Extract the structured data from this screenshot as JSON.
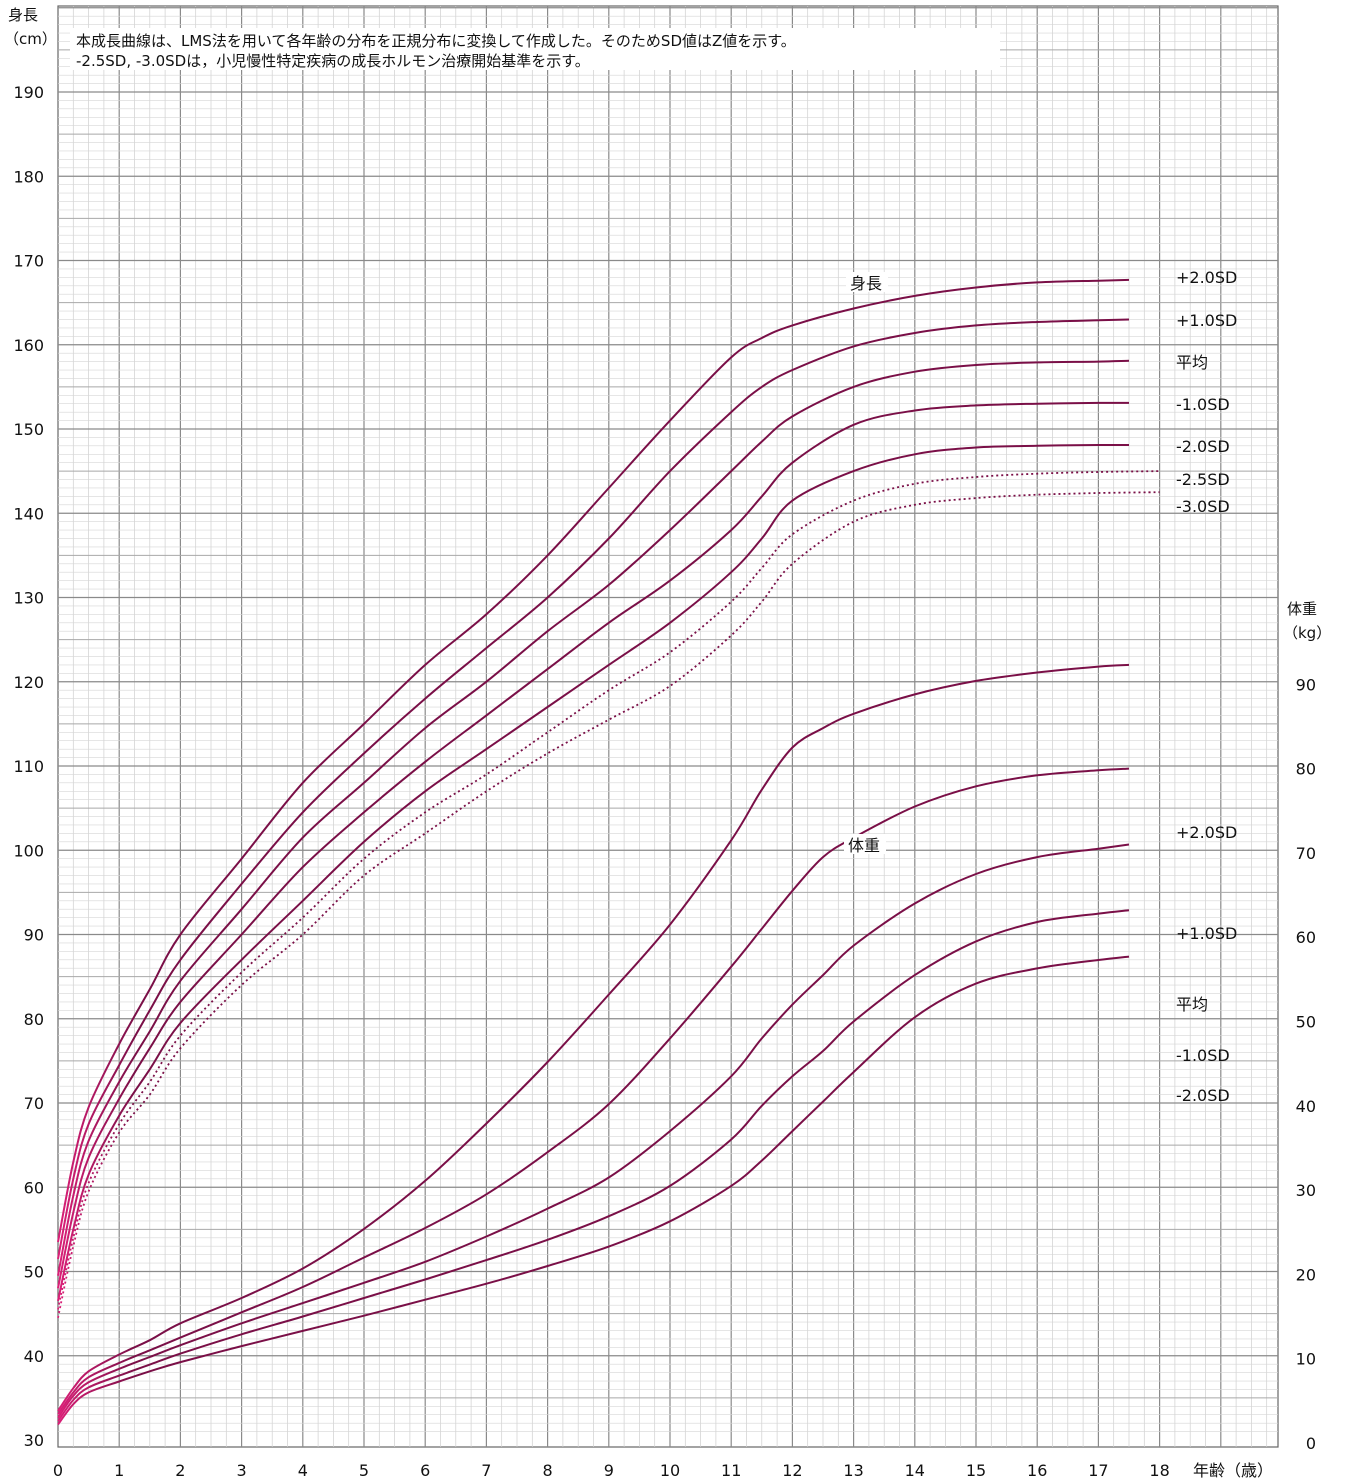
{
  "chart_data": {
    "type": "line",
    "notes": [
      "本成長曲線は、LMS法を用いて各年齢の分布を正規分布に変換して作成した。そのためSD値はZ値を示す。",
      "-2.5SD, -3.0SDは，小児慢性特定疾病の成長ホルモン治療開始基準を示す。"
    ],
    "x_axis": {
      "label": "年齢（歳）",
      "ticks": [
        "0",
        "1",
        "2",
        "3",
        "4",
        "5",
        "6",
        "7",
        "8",
        "9",
        "10",
        "11",
        "12",
        "13",
        "14",
        "15",
        "16",
        "17",
        "18"
      ],
      "range": [
        0,
        18.5
      ]
    },
    "y_axis_left": {
      "title_line1": "身長",
      "title_line2": "（cm）",
      "ticks": [
        30,
        40,
        50,
        60,
        70,
        80,
        90,
        100,
        110,
        120,
        130,
        140,
        150,
        160,
        170,
        180,
        190
      ],
      "range": [
        30,
        195
      ]
    },
    "y_axis_right": {
      "title_line1": "体重",
      "title_line2": "（kg）",
      "ticks": [
        0,
        10,
        20,
        30,
        40,
        50,
        60,
        70,
        80,
        90
      ],
      "range": [
        0,
        120
      ]
    },
    "grid": true,
    "line_color": "#7a0f47",
    "line_color_infant": "#e0207a",
    "height_group": {
      "title": "身長",
      "series": [
        {
          "name": "+2.0SD",
          "dashed": false,
          "x": [
            0,
            0.25,
            0.5,
            1,
            1.5,
            2,
            3,
            4,
            5,
            6,
            7,
            8,
            9,
            10,
            11,
            11.5,
            12,
            13,
            14,
            15,
            16,
            17,
            17.5
          ],
          "y": [
            53.5,
            63,
            69.5,
            77,
            83.5,
            90,
            99,
            108,
            115,
            122,
            128,
            135,
            143,
            151,
            158.5,
            160.8,
            162.3,
            164.3,
            165.8,
            166.8,
            167.4,
            167.6,
            167.7
          ]
        },
        {
          "name": "+1.0SD",
          "dashed": false,
          "x": [
            0,
            0.25,
            0.5,
            1,
            1.5,
            2,
            3,
            4,
            5,
            6,
            7,
            8,
            9,
            10,
            11,
            11.5,
            12,
            13,
            14,
            15,
            16,
            17,
            17.5
          ],
          "y": [
            51.5,
            61,
            67.5,
            74.5,
            81,
            87,
            96,
            104.5,
            111.5,
            118,
            124,
            130,
            137,
            145,
            152,
            155,
            157,
            159.8,
            161.4,
            162.3,
            162.7,
            162.9,
            163
          ]
        },
        {
          "name": "平均",
          "dashed": false,
          "x": [
            0,
            0.25,
            0.5,
            1,
            1.5,
            2,
            3,
            4,
            5,
            6,
            7,
            8,
            9,
            10,
            11,
            11.5,
            12,
            13,
            14,
            15,
            16,
            17,
            17.5
          ],
          "y": [
            49.5,
            59,
            65.5,
            72.5,
            78.5,
            84.5,
            93,
            101.5,
            108,
            114.5,
            120,
            126,
            131.5,
            138,
            145,
            148.5,
            151.5,
            155,
            156.8,
            157.6,
            157.9,
            158,
            158.1
          ]
        },
        {
          "name": "-1.0SD",
          "dashed": false,
          "x": [
            0,
            0.25,
            0.5,
            1,
            1.5,
            2,
            3,
            4,
            5,
            6,
            7,
            8,
            9,
            10,
            11,
            11.5,
            12,
            13,
            14,
            15,
            16,
            17,
            17.5
          ],
          "y": [
            48,
            57,
            63.5,
            70.5,
            76.5,
            82,
            90,
            98,
            104.5,
            110.5,
            116,
            121.5,
            127,
            132,
            138,
            142,
            146,
            150.5,
            152.2,
            152.8,
            153,
            153.1,
            153.1
          ]
        },
        {
          "name": "-2.0SD",
          "dashed": false,
          "x": [
            0,
            0.25,
            0.5,
            1,
            1.5,
            2,
            3,
            4,
            5,
            6,
            7,
            8,
            9,
            10,
            11,
            11.5,
            12,
            13,
            14,
            15,
            16,
            17,
            17.5
          ],
          "y": [
            46.5,
            55,
            61.5,
            68.5,
            74,
            79.5,
            87,
            94,
            101,
            107,
            112,
            117,
            122,
            127,
            133,
            137,
            141.5,
            145,
            147,
            147.8,
            148,
            148.1,
            148.1
          ]
        },
        {
          "name": "-2.5SD",
          "dashed": true,
          "x": [
            0,
            0.25,
            0.5,
            1,
            1.5,
            2,
            3,
            4,
            5,
            6,
            7,
            8,
            9,
            10,
            11,
            11.5,
            12,
            13,
            14,
            15,
            16,
            17,
            18
          ],
          "y": [
            45.5,
            54,
            60.5,
            67.5,
            72.5,
            78,
            85.5,
            92,
            99,
            104.5,
            109,
            114,
            119,
            123.5,
            129.5,
            133.5,
            137.5,
            141.5,
            143.5,
            144.3,
            144.7,
            144.9,
            145
          ]
        },
        {
          "name": "-3.0SD",
          "dashed": true,
          "x": [
            0,
            0.25,
            0.5,
            1,
            1.5,
            2,
            3,
            4,
            5,
            6,
            7,
            8,
            9,
            10,
            11,
            11.5,
            12,
            13,
            14,
            15,
            16,
            17,
            18
          ],
          "y": [
            44.5,
            53,
            59.5,
            66.5,
            71,
            76.5,
            84,
            90,
            97,
            102,
            107,
            111.5,
            115.5,
            119.5,
            125.5,
            129.5,
            134,
            139,
            141,
            141.8,
            142.2,
            142.4,
            142.5
          ]
        }
      ]
    },
    "weight_group": {
      "title": "体重",
      "series": [
        {
          "name": "+2.0SD",
          "x": [
            0,
            0.25,
            0.5,
            1,
            1.5,
            2,
            3,
            4,
            5,
            6,
            7,
            8,
            9,
            10,
            11,
            11.5,
            12,
            12.5,
            13,
            14,
            15,
            16,
            17,
            17.5
          ],
          "y": [
            3.8,
            6.5,
            8.5,
            10.5,
            12.2,
            14.2,
            17.2,
            20.7,
            25.4,
            31.1,
            37.9,
            45.2,
            53.2,
            61.5,
            71.5,
            77.5,
            82.5,
            84.8,
            86.5,
            88.8,
            90.4,
            91.4,
            92.1,
            92.3
          ]
        },
        {
          "name": "+1.0SD",
          "x": [
            0,
            0.25,
            0.5,
            1,
            1.5,
            2,
            3,
            4,
            5,
            6,
            7,
            8,
            9,
            10,
            11,
            11.5,
            12,
            12.5,
            13,
            14,
            15,
            16,
            17,
            17.5
          ],
          "y": [
            3.4,
            6,
            7.8,
            9.5,
            11,
            12.5,
            15.5,
            18.5,
            22,
            25.5,
            29.5,
            34.5,
            40.2,
            48,
            56.5,
            61,
            65.5,
            69.5,
            71.8,
            75.5,
            77.9,
            79.2,
            79.8,
            80
          ]
        },
        {
          "name": "平均",
          "x": [
            0,
            0.25,
            0.5,
            1,
            1.5,
            2,
            3,
            4,
            5,
            6,
            7,
            8,
            9,
            10,
            11,
            11.5,
            12,
            12.5,
            13,
            14,
            15,
            16,
            17,
            17.5
          ],
          "y": [
            3,
            5.6,
            7.2,
            8.8,
            10.2,
            11.6,
            14.2,
            16.6,
            19,
            21.5,
            24.5,
            27.8,
            31.5,
            37,
            43.5,
            48,
            52,
            55.5,
            59,
            64,
            67.5,
            69.5,
            70.5,
            71
          ]
        },
        {
          "name": "-1.0SD",
          "x": [
            0,
            0.25,
            0.5,
            1,
            1.5,
            2,
            3,
            4,
            5,
            6,
            7,
            8,
            9,
            10,
            11,
            11.5,
            12,
            12.5,
            13,
            14,
            15,
            16,
            17,
            17.5
          ],
          "y": [
            2.6,
            5.1,
            6.6,
            8,
            9.3,
            10.6,
            12.9,
            15,
            17.2,
            19.4,
            21.7,
            24.1,
            26.9,
            30.5,
            36,
            40,
            43.5,
            46.5,
            50,
            55.5,
            59.5,
            61.8,
            62.8,
            63.2
          ]
        },
        {
          "name": "-2.0SD",
          "x": [
            0,
            0.25,
            0.5,
            1,
            1.5,
            2,
            3,
            4,
            5,
            6,
            7,
            8,
            9,
            10,
            11,
            11.5,
            12,
            12.5,
            13,
            14,
            15,
            16,
            17,
            17.5
          ],
          "y": [
            2.2,
            4.6,
            6,
            7.3,
            8.5,
            9.6,
            11.5,
            13.3,
            15.1,
            17,
            18.9,
            21,
            23.3,
            26.3,
            30.5,
            33.5,
            37,
            40.5,
            44,
            50.5,
            54.5,
            56.3,
            57.3,
            57.7
          ]
        }
      ]
    }
  }
}
